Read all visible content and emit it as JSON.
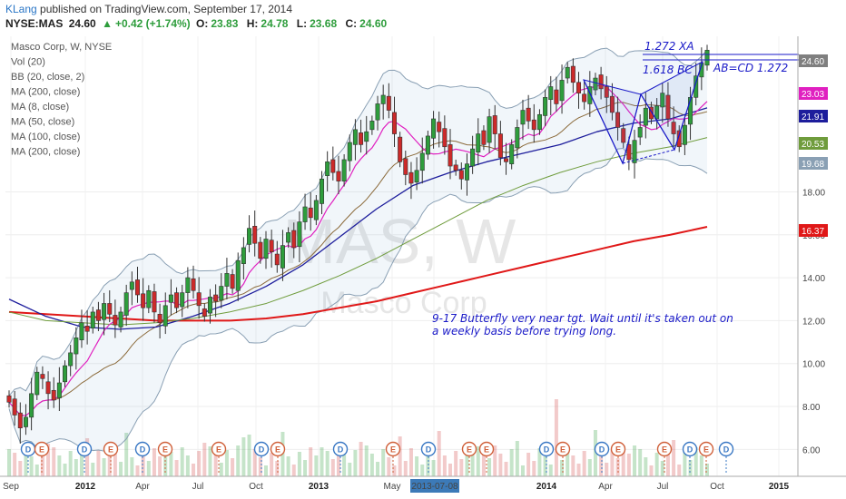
{
  "header": {
    "user": "KLang",
    "published": " published on TradingView.com, September 17, 2014",
    "symbol": "NYSE:MAS",
    "last": "24.60",
    "change": "+0.42 (+1.74%)",
    "o_label": "O:",
    "o": "23.83",
    "h_label": "H:",
    "h": "24.78",
    "l_label": "L:",
    "l": "23.68",
    "c_label": "C:",
    "c": "24.60"
  },
  "legend": [
    "Masco Corp, W, NYSE",
    "Vol (20)",
    "BB (20, close, 2)",
    "MA (200, close)",
    "MA (8, close)",
    "MA (50, close)",
    "MA (100, close)",
    "MA (200, close)"
  ],
  "watermark": {
    "symbol": "MAS, W",
    "name": "Masco Corp"
  },
  "annotations": {
    "xa": "1.272 XA",
    "bc": "1.618 BC",
    "abcd": "AB=CD 1.272",
    "note_line1": "9-17  Butterfly very near tgt. Wait until it's taken out on",
    "note_line2": "a weekly basis before trying long."
  },
  "price_badges": [
    {
      "value": "24.60",
      "color": "#7f7f7f"
    },
    {
      "value": "23.03",
      "color": "#e020c0"
    },
    {
      "value": "21.91",
      "color": "#1d1d9c"
    },
    {
      "value": "20.53",
      "color": "#6f9c3c"
    },
    {
      "value": "19.68",
      "color": "#8aa0b4"
    },
    {
      "value": "16.37",
      "color": "#e01818"
    }
  ],
  "x_tick_labels": [
    "Sep",
    "2012",
    "Apr",
    "Jul",
    "Oct",
    "2013",
    "May",
    "2013-07-08",
    "2014",
    "Apr",
    "Jul",
    "Oct",
    "2015"
  ],
  "events": [
    "D",
    "E",
    "D",
    "E",
    "D",
    "E",
    "E",
    "D",
    "E",
    "D",
    "E",
    "D",
    "E",
    "E",
    "D",
    "E",
    "D",
    "E",
    "E",
    "D",
    "E",
    "D",
    "E",
    "E"
  ],
  "chart_data": {
    "type": "candlestick",
    "title": "Masco Corp, W, NYSE",
    "ylim": [
      5.0,
      25.5
    ],
    "y_ticks": [
      6.0,
      8.0,
      10.0,
      12.0,
      14.0,
      16.0,
      18.0
    ],
    "x_ticks": [
      "Sep",
      "2012",
      "Apr",
      "Jul",
      "Oct",
      "2013",
      "May",
      "2013-07-08",
      "2014",
      "Apr",
      "Jul",
      "Oct",
      "2015"
    ],
    "close": [
      8.2,
      7.6,
      7.0,
      7.5,
      8.6,
      9.6,
      9.3,
      8.6,
      8.3,
      9.1,
      9.9,
      10.5,
      11.2,
      11.9,
      11.5,
      12.4,
      12.0,
      12.8,
      12.3,
      11.8,
      12.4,
      13.3,
      13.8,
      13.2,
      12.6,
      13.4,
      12.4,
      11.9,
      12.7,
      13.2,
      12.6,
      13.3,
      14.0,
      13.4,
      12.7,
      12.2,
      13.1,
      12.9,
      13.6,
      14.2,
      13.5,
      14.8,
      15.4,
      16.3,
      15.6,
      14.9,
      15.8,
      15.2,
      14.6,
      15.5,
      16.1,
      15.4,
      16.6,
      17.3,
      16.8,
      17.6,
      18.6,
      19.4,
      18.9,
      18.5,
      19.5,
      20.3,
      20.9,
      20.2,
      20.8,
      21.3,
      22.1,
      22.5,
      21.8,
      20.7,
      19.4,
      18.8,
      18.4,
      19.0,
      19.8,
      20.6,
      21.4,
      20.8,
      20.1,
      19.2,
      19.0,
      18.6,
      19.3,
      20.0,
      20.7,
      20.2,
      21.5,
      20.7,
      19.6,
      19.4,
      20.2,
      21.0,
      21.8,
      21.3,
      20.9,
      21.6,
      22.4,
      22.9,
      22.1,
      23.2,
      23.8,
      23.1,
      22.6,
      22.2,
      22.9,
      23.3,
      22.8,
      22.4,
      21.7,
      21.0,
      20.3,
      19.5,
      20.4,
      21.0,
      21.9,
      21.4,
      22.0,
      22.6,
      21.4,
      20.7,
      20.1,
      21.1,
      22.4,
      23.4,
      24.0,
      24.6
    ],
    "series": [
      {
        "name": "BB (20, close, 2)",
        "color": "#7f8fa8"
      },
      {
        "name": "MA (200, close)",
        "color": "#e01818",
        "values": [
          12.4,
          12.3,
          12.2,
          12.1,
          12.0,
          12.0,
          12.0,
          12.1,
          12.3,
          12.6,
          12.9,
          13.3,
          13.7,
          14.1,
          14.5,
          14.9,
          15.3,
          15.7,
          16.0,
          16.37
        ]
      },
      {
        "name": "MA (8, close)",
        "color": "#e020c0"
      },
      {
        "name": "MA (50, close)",
        "color": "#1d1d9c",
        "values": [
          13.0,
          12.2,
          11.7,
          11.6,
          11.7,
          12.2,
          12.8,
          13.6,
          14.6,
          15.9,
          17.2,
          18.3,
          18.9,
          19.4,
          19.8,
          20.2,
          20.8,
          21.2,
          21.4,
          21.91
        ]
      },
      {
        "name": "MA (100, close)",
        "color": "#6f9c3c",
        "values": [
          12.4,
          12.0,
          11.9,
          11.8,
          11.9,
          12.1,
          12.4,
          12.8,
          13.4,
          14.1,
          14.9,
          15.8,
          16.7,
          17.6,
          18.3,
          18.9,
          19.4,
          19.8,
          20.1,
          20.53
        ]
      }
    ],
    "volume_unit": "relative",
    "colors": {
      "up": "#2e9d3c",
      "down": "#cc2a2a"
    }
  }
}
